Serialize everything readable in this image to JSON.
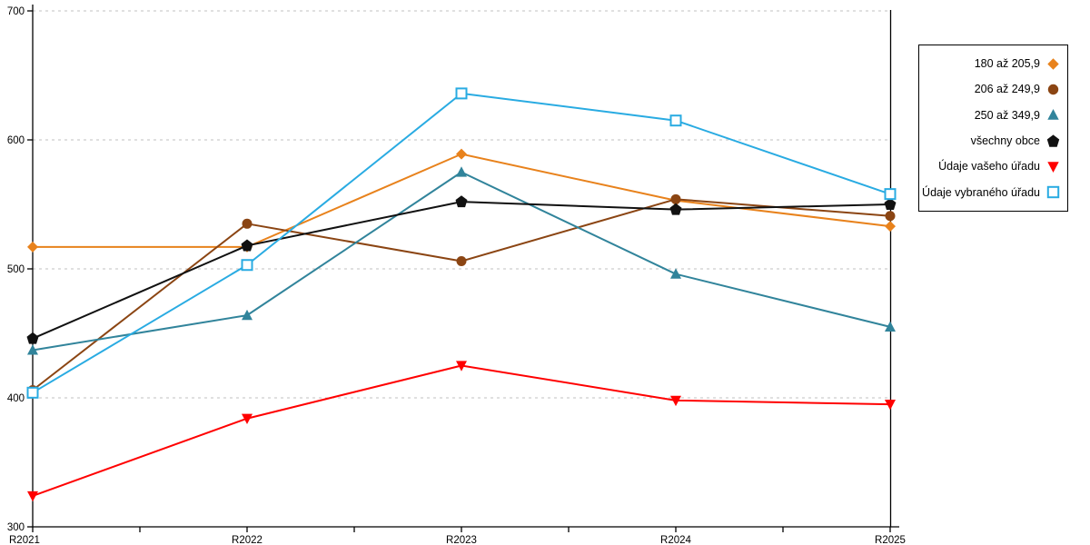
{
  "chart_data": {
    "type": "line",
    "title": "",
    "xlabel": "",
    "ylabel": "",
    "x": [
      "R2021",
      "R2022",
      "R2023",
      "R2024",
      "R2025"
    ],
    "series": [
      {
        "name": "180 až 205,9",
        "marker": "diamond",
        "color": "#E8821C",
        "values": [
          517,
          517,
          589,
          553,
          533
        ]
      },
      {
        "name": "206 až 249,9",
        "marker": "circle",
        "color": "#8B4513",
        "values": [
          406,
          535,
          506,
          554,
          541
        ]
      },
      {
        "name": "250 až 349,9",
        "marker": "triangle-up",
        "color": "#31849B",
        "values": [
          437,
          464,
          575,
          496,
          455
        ]
      },
      {
        "name": "všechny obce",
        "marker": "pentagon",
        "color": "#111111",
        "values": [
          446,
          518,
          552,
          546,
          550
        ]
      },
      {
        "name": "Údaje vašeho úřadu",
        "marker": "triangle-down",
        "color": "#FF0000",
        "values": [
          324,
          384,
          425,
          398,
          395
        ]
      },
      {
        "name": "Údaje vybraného úřadu",
        "marker": "square-open",
        "color": "#29ABE2",
        "values": [
          404,
          503,
          636,
          615,
          558
        ]
      }
    ],
    "ylim": [
      300,
      700
    ],
    "yticks": [
      300,
      400,
      500,
      600,
      700
    ],
    "ytick_labels": [
      "300",
      "400",
      "500",
      "600",
      "700"
    ],
    "grid": "horizontal-dashed",
    "legend_position": "top-right"
  },
  "colors": {
    "background": "#FFFFFF",
    "axis": "#000000",
    "gridline": "#C2C2C2",
    "text": "#000000"
  }
}
